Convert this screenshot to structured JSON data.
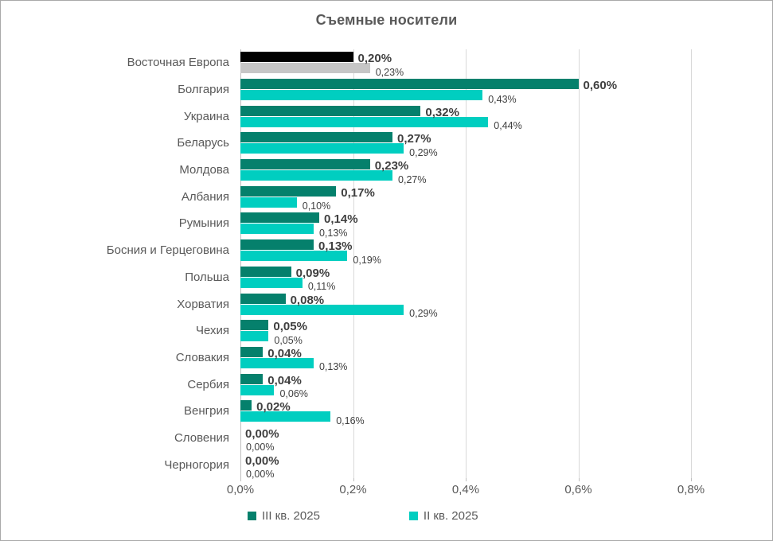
{
  "title": "Съемные носители",
  "colors": {
    "series1": "#05806C",
    "series2": "#00CEC0",
    "series1_highlight": "#000000",
    "series2_highlight": "#C6C6C6",
    "gridline": "#D9D9D9",
    "axis_line": "#BFBFBF",
    "text": "#595959",
    "data_label": "#3F3F3F"
  },
  "chart_data": {
    "type": "bar",
    "orientation": "horizontal",
    "title": "Съемные носители",
    "xlabel": "",
    "ylabel": "",
    "xlim": [
      0,
      0.8
    ],
    "x_ticks": [
      "0,0%",
      "0,2%",
      "0,4%",
      "0,6%",
      "0,8%"
    ],
    "grid": true,
    "legend_position": "bottom",
    "highlight_index": 0,
    "categories": [
      "Восточная Европа",
      "Болгария",
      "Украина",
      "Беларусь",
      "Молдова",
      "Албания",
      "Румыния",
      "Босния и Герцеговина",
      "Польша",
      "Хорватия",
      "Чехия",
      "Словакия",
      "Сербия",
      "Венгрия",
      "Словения",
      "Черногория"
    ],
    "series": [
      {
        "name": "III кв. 2025",
        "color": "#05806C",
        "highlight_color": "#000000",
        "values": [
          0.2,
          0.6,
          0.32,
          0.27,
          0.23,
          0.17,
          0.14,
          0.13,
          0.09,
          0.08,
          0.05,
          0.04,
          0.04,
          0.02,
          0.0,
          0.0
        ],
        "labels": [
          "0,20%",
          "0,60%",
          "0,32%",
          "0,27%",
          "0,23%",
          "0,17%",
          "0,14%",
          "0,13%",
          "0,09%",
          "0,08%",
          "0,05%",
          "0,04%",
          "0,04%",
          "0,02%",
          "0,00%",
          "0,00%"
        ]
      },
      {
        "name": "II кв. 2025",
        "color": "#00CEC0",
        "highlight_color": "#C6C6C6",
        "values": [
          0.23,
          0.43,
          0.44,
          0.29,
          0.27,
          0.1,
          0.13,
          0.19,
          0.11,
          0.29,
          0.05,
          0.13,
          0.06,
          0.16,
          0.0,
          0.0
        ],
        "labels": [
          "0,23%",
          "0,43%",
          "0,44%",
          "0,29%",
          "0,27%",
          "0,10%",
          "0,13%",
          "0,19%",
          "0,11%",
          "0,29%",
          "0,05%",
          "0,13%",
          "0,06%",
          "0,16%",
          "0,00%",
          "0,00%"
        ]
      }
    ]
  }
}
